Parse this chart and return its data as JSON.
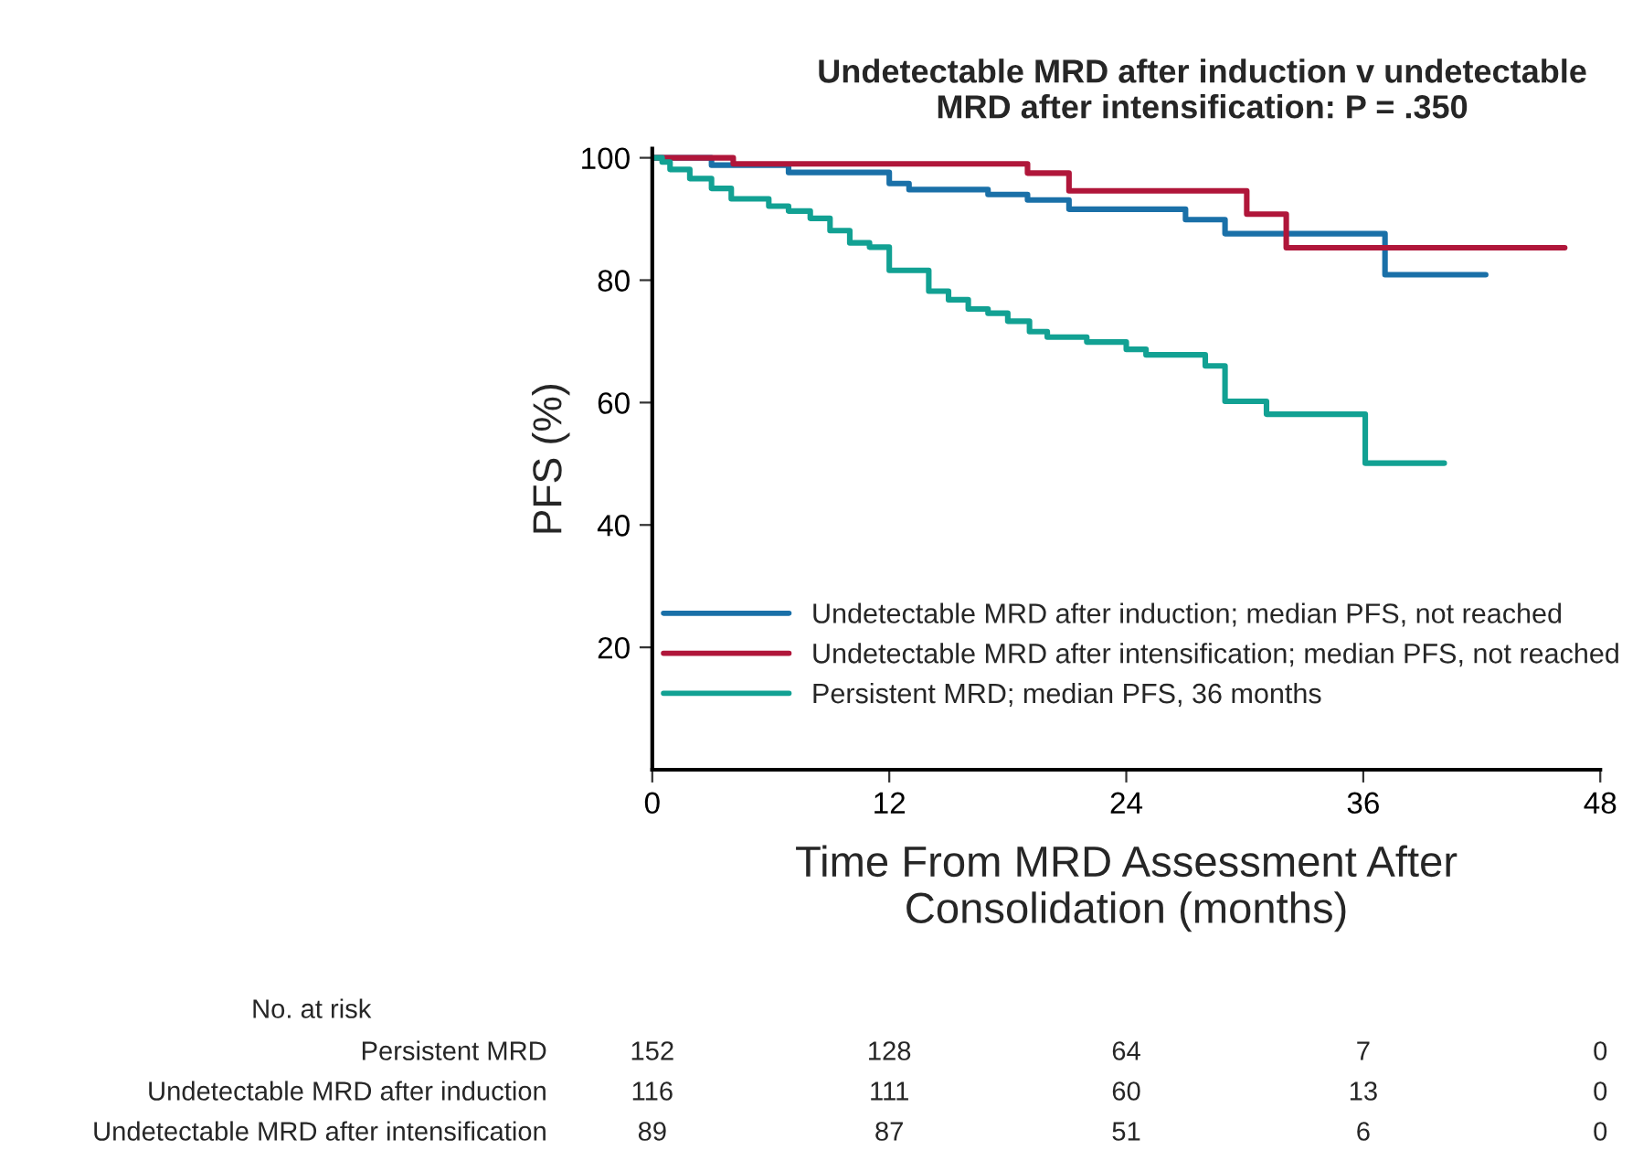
{
  "chart_data": {
    "type": "step",
    "title": "Undetectable MRD after induction v undetectable\nMRD after intensification: P = .350",
    "xlabel": "Time From MRD Assessment After\nConsolidation (months)",
    "ylabel": "PFS (%)",
    "series": [
      {
        "name": "Undetectable MRD after induction; median PFS, not reached",
        "color": "#1a70a8",
        "x": [
          0,
          3,
          6.9,
          12,
          13,
          17,
          19,
          21.1,
          27,
          29,
          37.1,
          42.2
        ],
        "values": [
          100,
          98.8,
          97.6,
          95.8,
          94.8,
          94,
          93.1,
          91.6,
          89.9,
          87.6,
          80.9,
          80.9
        ]
      },
      {
        "name": "Undetectable MRD after intensification; median PFS, not reached",
        "color": "#b0163a",
        "x": [
          0,
          4.1,
          19,
          21.1,
          30.1,
          32.1,
          46.2
        ],
        "values": [
          100,
          99,
          97.5,
          94.6,
          90.8,
          85.3,
          85.3
        ]
      },
      {
        "name": "Persistent MRD; median PFS, 36 months",
        "color": "#12a193",
        "x": [
          0,
          0.5,
          0.9,
          1.9,
          3,
          4,
          5.9,
          6.9,
          8,
          9,
          10,
          11,
          12,
          14,
          15,
          16,
          17,
          18,
          19.1,
          20,
          22,
          24,
          25,
          28,
          29,
          31.1,
          36.1,
          40.1
        ],
        "values": [
          100,
          99.3,
          98.1,
          96.6,
          95,
          93.3,
          92.1,
          91.3,
          90.1,
          88.1,
          86.1,
          85.4,
          81.6,
          78.2,
          76.8,
          75.3,
          74.6,
          73.3,
          71.6,
          70.7,
          69.9,
          68.7,
          67.8,
          66,
          60.2,
          58.1,
          50.1,
          50.1
        ]
      }
    ],
    "xlim": [
      0,
      48
    ],
    "xticks": [
      0,
      12,
      24,
      36,
      48
    ],
    "ylim": [
      0,
      101.5
    ],
    "yticks": [
      20,
      40,
      60,
      80,
      100
    ],
    "legend": "bottom left",
    "grid": false,
    "line_style": "solid",
    "marker": "none",
    "annotations": [
      "No. at risk",
      "Persistent MRD",
      "152",
      "128",
      "64",
      "7",
      "0",
      "Undetectable MRD after induction",
      "116",
      "111",
      "60",
      "13",
      "0",
      "Undetectable MRD after intensification",
      "89",
      "87",
      "51",
      "6",
      "0"
    ]
  }
}
